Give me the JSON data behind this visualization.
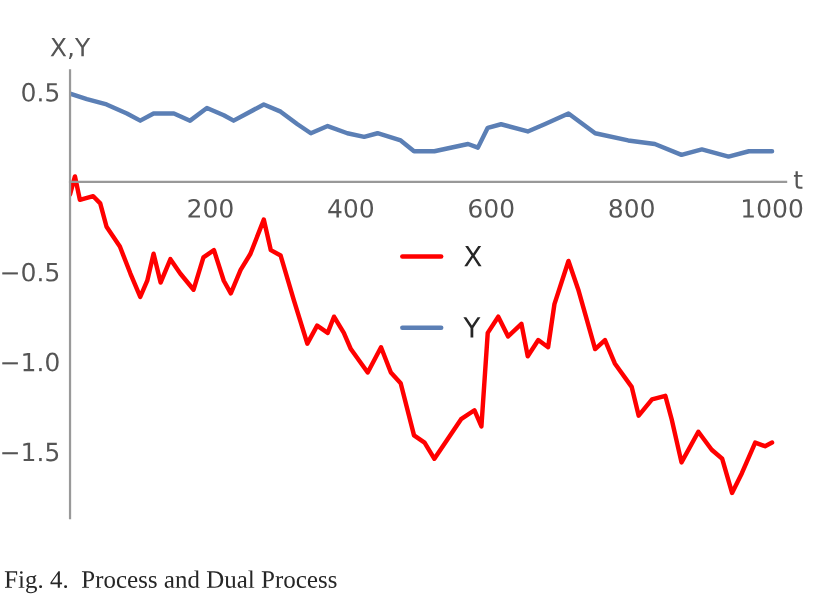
{
  "chart_data": {
    "type": "line",
    "xlabel": "t",
    "ylabel": "X,Y",
    "annotations": [
      "Fig. 4.  Process and Dual Process"
    ],
    "xlim": [
      0,
      1020
    ],
    "ylim": [
      -1.87,
      0.62
    ],
    "xticks": [
      200,
      400,
      600,
      800,
      1000
    ],
    "yticks": [
      {
        "value": 0.5,
        "label": "0.5"
      },
      {
        "value": -0.5,
        "label": "−0.5"
      },
      {
        "value": -1.0,
        "label": "−1.0"
      },
      {
        "value": -1.5,
        "label": "−1.5"
      }
    ],
    "grid": false,
    "legend": "center",
    "series": [
      {
        "name": "X",
        "color": "#ff0000",
        "x": [
          0,
          7,
          14,
          33,
          43,
          52,
          71,
          86,
          100,
          110,
          119,
          129,
          143,
          157,
          176,
          190,
          205,
          219,
          229,
          243,
          257,
          276,
          286,
          300,
          319,
          338,
          352,
          367,
          376,
          390,
          400,
          424,
          443,
          457,
          471,
          490,
          505,
          519,
          538,
          557,
          576,
          586,
          595,
          610,
          624,
          643,
          652,
          667,
          681,
          690,
          710,
          724,
          748,
          762,
          776,
          800,
          810,
          829,
          848,
          857,
          871,
          895,
          914,
          929,
          943,
          957,
          976,
          990,
          1000
        ],
        "values": [
          -0.07,
          0.03,
          -0.1,
          -0.08,
          -0.12,
          -0.25,
          -0.36,
          -0.51,
          -0.64,
          -0.55,
          -0.4,
          -0.56,
          -0.43,
          -0.51,
          -0.6,
          -0.42,
          -0.38,
          -0.55,
          -0.62,
          -0.49,
          -0.4,
          -0.21,
          -0.38,
          -0.41,
          -0.66,
          -0.9,
          -0.8,
          -0.84,
          -0.75,
          -0.84,
          -0.93,
          -1.06,
          -0.92,
          -1.06,
          -1.12,
          -1.41,
          -1.45,
          -1.54,
          -1.43,
          -1.32,
          -1.27,
          -1.36,
          -0.84,
          -0.75,
          -0.86,
          -0.79,
          -0.97,
          -0.88,
          -0.92,
          -0.68,
          -0.44,
          -0.6,
          -0.93,
          -0.88,
          -1.01,
          -1.14,
          -1.3,
          -1.21,
          -1.19,
          -1.32,
          -1.56,
          -1.39,
          -1.49,
          -1.54,
          -1.73,
          -1.62,
          -1.45,
          -1.47,
          -1.45
        ]
      },
      {
        "name": "Y",
        "color": "#5b7fb5",
        "x": [
          0,
          24,
          52,
          81,
          100,
          119,
          148,
          171,
          195,
          219,
          233,
          252,
          276,
          300,
          324,
          343,
          367,
          395,
          419,
          438,
          471,
          490,
          519,
          567,
          581,
          595,
          614,
          652,
          676,
          710,
          748,
          795,
          833,
          871,
          900,
          938,
          967,
          1000
        ],
        "values": [
          0.49,
          0.46,
          0.43,
          0.38,
          0.34,
          0.38,
          0.38,
          0.34,
          0.41,
          0.37,
          0.34,
          0.38,
          0.43,
          0.39,
          0.32,
          0.27,
          0.31,
          0.27,
          0.25,
          0.27,
          0.23,
          0.17,
          0.17,
          0.21,
          0.19,
          0.3,
          0.32,
          0.28,
          0.32,
          0.38,
          0.27,
          0.23,
          0.21,
          0.15,
          0.18,
          0.14,
          0.17,
          0.17
        ]
      }
    ]
  }
}
